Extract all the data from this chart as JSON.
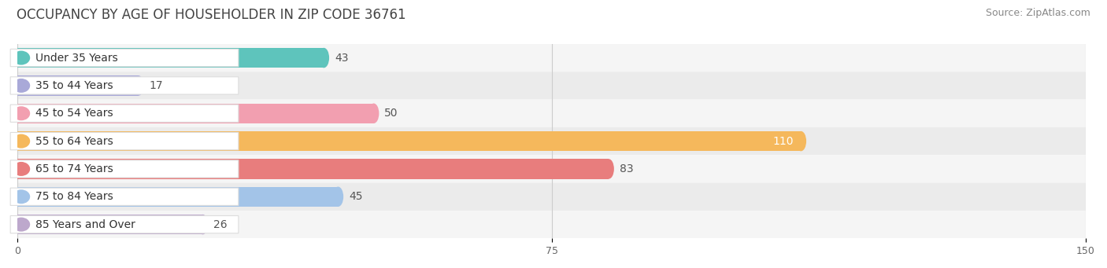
{
  "title": "OCCUPANCY BY AGE OF HOUSEHOLDER IN ZIP CODE 36761",
  "source": "Source: ZipAtlas.com",
  "categories": [
    "Under 35 Years",
    "35 to 44 Years",
    "45 to 54 Years",
    "55 to 64 Years",
    "65 to 74 Years",
    "75 to 84 Years",
    "85 Years and Over"
  ],
  "values": [
    43,
    17,
    50,
    110,
    83,
    45,
    26
  ],
  "bar_colors": [
    "#5EC4BC",
    "#A9A9D8",
    "#F29FB0",
    "#F5B85C",
    "#E87D7D",
    "#A3C4E8",
    "#BDA8CC"
  ],
  "xlim_min": 0,
  "xlim_max": 150,
  "xticks": [
    0,
    75,
    150
  ],
  "title_fontsize": 12,
  "source_fontsize": 9,
  "bar_label_fontsize": 10,
  "category_fontsize": 10,
  "background_color": "#FFFFFF",
  "row_bg_even": "#F5F5F5",
  "row_bg_odd": "#EBEBEB",
  "grid_color": "#CCCCCC",
  "pill_bg": "#FFFFFF",
  "pill_border": "#DDDDDD",
  "value_label_110_color": "#FFFFFF",
  "value_label_other_color": "#555555"
}
